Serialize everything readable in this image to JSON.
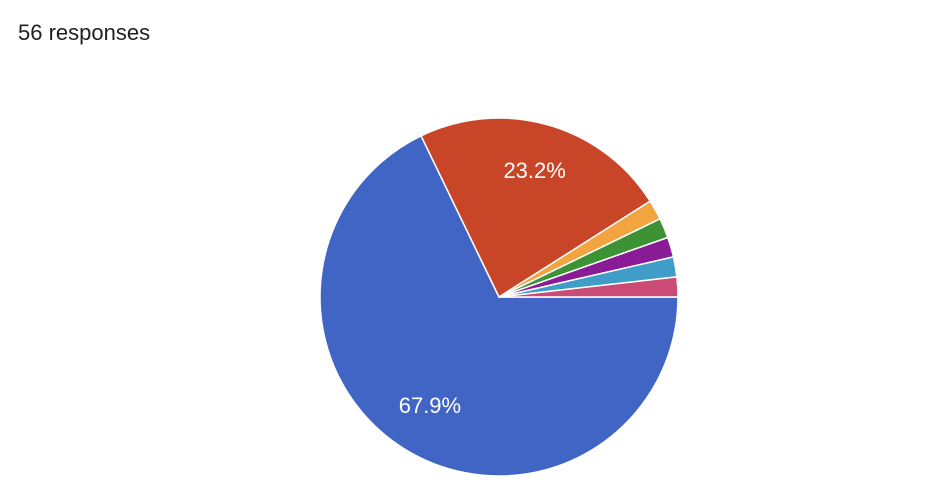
{
  "chart_data": {
    "type": "pie",
    "title": "56 responses",
    "categories": [
      null,
      null,
      null,
      null,
      null,
      null,
      null
    ],
    "values": [
      67.9,
      23.2,
      1.8,
      1.8,
      1.8,
      1.8,
      1.8
    ],
    "value_labels": [
      "67.9%",
      "23.2%",
      null,
      null,
      null,
      null,
      null
    ],
    "colors": [
      "#4065c4",
      "#c94528",
      "#f1a43f",
      "#3d9234",
      "#8a1b96",
      "#3f9dc8",
      "#cb4b77"
    ]
  }
}
